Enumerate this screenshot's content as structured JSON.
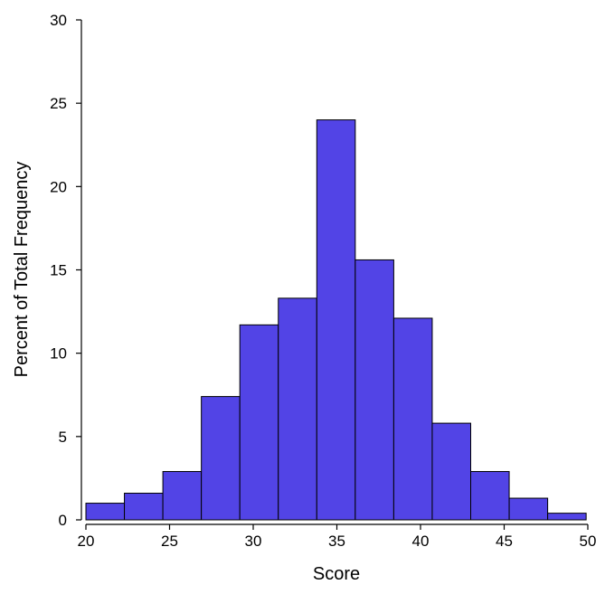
{
  "chart_data": {
    "type": "bar",
    "subtype": "histogram",
    "title": "",
    "xlabel": "Score",
    "ylabel": "Percent of Total Frequency",
    "xlim": [
      20,
      50
    ],
    "ylim": [
      0,
      30
    ],
    "x_ticks": [
      20,
      25,
      30,
      35,
      40,
      45,
      50
    ],
    "y_ticks": [
      0,
      5,
      10,
      15,
      20,
      25,
      30
    ],
    "bin_edges": [
      20,
      22.3,
      24.6,
      26.9,
      29.2,
      31.5,
      33.8,
      36.1,
      38.4,
      40.7,
      43.0,
      45.3,
      47.6,
      49.9
    ],
    "values": [
      1.0,
      1.6,
      2.9,
      7.4,
      11.7,
      13.3,
      24.0,
      15.6,
      12.1,
      5.8,
      2.9,
      1.3,
      0.4
    ],
    "grid": false,
    "bar_color": "#5244e6"
  }
}
